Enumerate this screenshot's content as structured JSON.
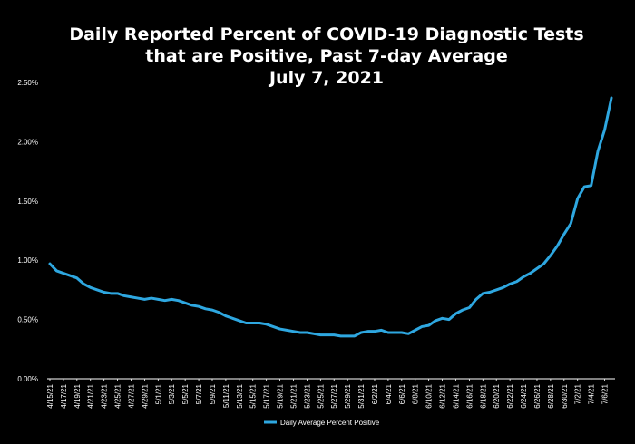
{
  "chart_data": {
    "type": "line",
    "title_lines": [
      "Daily Reported Percent of COVID-19 Diagnostic Tests",
      "that are Positive, Past 7-day Average",
      "July 7, 2021"
    ],
    "xlabel": "",
    "ylabel": "",
    "ylim": [
      0,
      0.025
    ],
    "y_ticks": [
      0,
      0.005,
      0.01,
      0.015,
      0.02,
      0.025
    ],
    "y_tick_labels": [
      "0.00%",
      "0.50%",
      "1.00%",
      "1.50%",
      "2.00%",
      "2.50%"
    ],
    "x_tick_labels": [
      "4/15/21",
      "4/17/21",
      "4/19/21",
      "4/21/21",
      "4/23/21",
      "4/25/21",
      "4/27/21",
      "4/29/21",
      "5/1/21",
      "5/3/21",
      "5/5/21",
      "5/7/21",
      "5/9/21",
      "5/11/21",
      "5/13/21",
      "5/15/21",
      "5/17/21",
      "5/19/21",
      "5/21/21",
      "5/23/21",
      "5/25/21",
      "5/27/21",
      "5/29/21",
      "5/31/21",
      "6/2/21",
      "6/4/21",
      "6/6/21",
      "6/8/21",
      "6/10/21",
      "6/12/21",
      "6/14/21",
      "6/16/21",
      "6/18/21",
      "6/20/21",
      "6/22/21",
      "6/24/21",
      "6/26/21",
      "6/28/21",
      "6/30/21",
      "7/2/21",
      "7/4/21",
      "7/6/21"
    ],
    "x": [
      "4/15/21",
      "4/16/21",
      "4/17/21",
      "4/18/21",
      "4/19/21",
      "4/20/21",
      "4/21/21",
      "4/22/21",
      "4/23/21",
      "4/24/21",
      "4/25/21",
      "4/26/21",
      "4/27/21",
      "4/28/21",
      "4/29/21",
      "4/30/21",
      "5/1/21",
      "5/2/21",
      "5/3/21",
      "5/4/21",
      "5/5/21",
      "5/6/21",
      "5/7/21",
      "5/8/21",
      "5/9/21",
      "5/10/21",
      "5/11/21",
      "5/12/21",
      "5/13/21",
      "5/14/21",
      "5/15/21",
      "5/16/21",
      "5/17/21",
      "5/18/21",
      "5/19/21",
      "5/20/21",
      "5/21/21",
      "5/22/21",
      "5/23/21",
      "5/24/21",
      "5/25/21",
      "5/26/21",
      "5/27/21",
      "5/28/21",
      "5/29/21",
      "5/30/21",
      "5/31/21",
      "6/1/21",
      "6/2/21",
      "6/3/21",
      "6/4/21",
      "6/5/21",
      "6/6/21",
      "6/7/21",
      "6/8/21",
      "6/9/21",
      "6/10/21",
      "6/11/21",
      "6/12/21",
      "6/13/21",
      "6/14/21",
      "6/15/21",
      "6/16/21",
      "6/17/21",
      "6/18/21",
      "6/19/21",
      "6/20/21",
      "6/21/21",
      "6/22/21",
      "6/23/21",
      "6/24/21",
      "6/25/21",
      "6/26/21",
      "6/27/21",
      "6/28/21",
      "6/29/21",
      "6/30/21",
      "7/1/21",
      "7/2/21",
      "7/3/21",
      "7/4/21",
      "7/5/21",
      "7/6/21",
      "7/7/21"
    ],
    "series": [
      {
        "name": "Daily Average Percent Positive",
        "color": "#2ea7e0",
        "values": [
          0.0097,
          0.0091,
          0.0089,
          0.0087,
          0.0085,
          0.008,
          0.0077,
          0.0075,
          0.0073,
          0.0072,
          0.0072,
          0.007,
          0.0069,
          0.0068,
          0.0067,
          0.0068,
          0.0067,
          0.0066,
          0.0067,
          0.0066,
          0.0064,
          0.0062,
          0.0061,
          0.0059,
          0.0058,
          0.0056,
          0.0053,
          0.0051,
          0.0049,
          0.0047,
          0.0047,
          0.0047,
          0.0046,
          0.0044,
          0.0042,
          0.0041,
          0.004,
          0.0039,
          0.0039,
          0.0038,
          0.0037,
          0.0037,
          0.0037,
          0.0036,
          0.0036,
          0.0036,
          0.0039,
          0.004,
          0.004,
          0.0041,
          0.0039,
          0.0039,
          0.0039,
          0.0038,
          0.0041,
          0.0044,
          0.0045,
          0.0049,
          0.0051,
          0.005,
          0.0055,
          0.0058,
          0.006,
          0.0067,
          0.0072,
          0.0073,
          0.0075,
          0.0077,
          0.008,
          0.0082,
          0.0086,
          0.0089,
          0.0093,
          0.0097,
          0.0104,
          0.0112,
          0.0122,
          0.0131,
          0.0152,
          0.0162,
          0.0163,
          0.0192,
          0.021,
          0.0237
        ]
      }
    ],
    "grid": false,
    "legend_position": "bottom"
  }
}
